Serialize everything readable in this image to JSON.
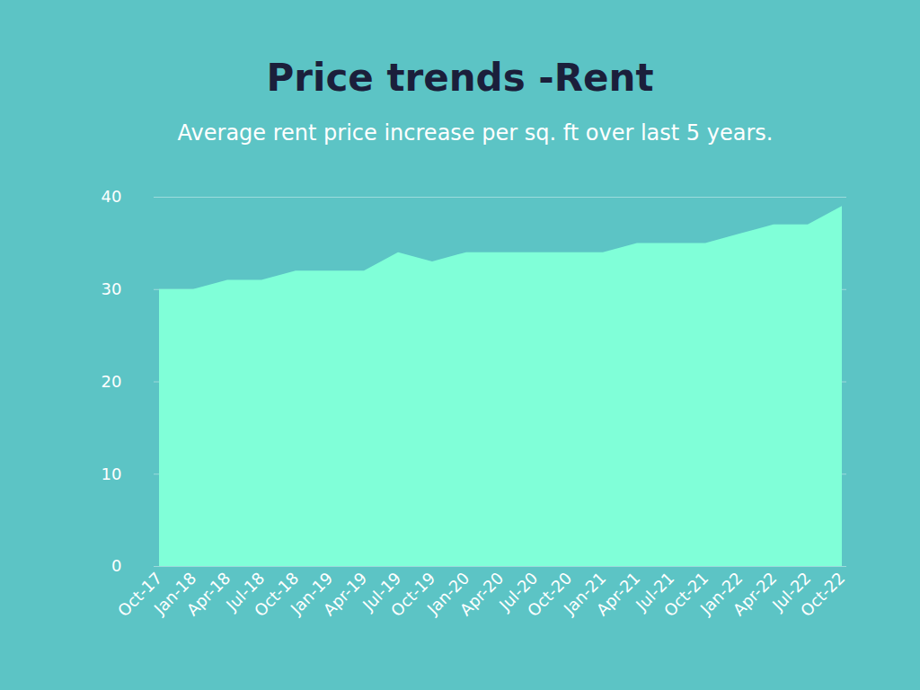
{
  "chart_data": {
    "type": "area",
    "title": "Price trends -Rent",
    "subtitle": "Average rent price increase per sq. ft over last 5 years.",
    "categories": [
      "Oct-17",
      "Jan-18",
      "Apr-18",
      "Jul-18",
      "Oct-18",
      "Jan-19",
      "Apr-19",
      "Jul-19",
      "Oct-19",
      "Jan-20",
      "Apr-20",
      "Jul-20",
      "Oct-20",
      "Jan-21",
      "Apr-21",
      "Jul-21",
      "Oct-21",
      "Jan-22",
      "Apr-22",
      "Jul-22",
      "Oct-22"
    ],
    "values": [
      30,
      30,
      31,
      31,
      32,
      32,
      32,
      34,
      33,
      34,
      34,
      34,
      34,
      34,
      35,
      35,
      35,
      36,
      37,
      37,
      39
    ],
    "color": "#80ffd8",
    "ylim": [
      0,
      40
    ],
    "yticks": [
      0,
      10,
      20,
      30,
      40
    ],
    "grid": true
  }
}
